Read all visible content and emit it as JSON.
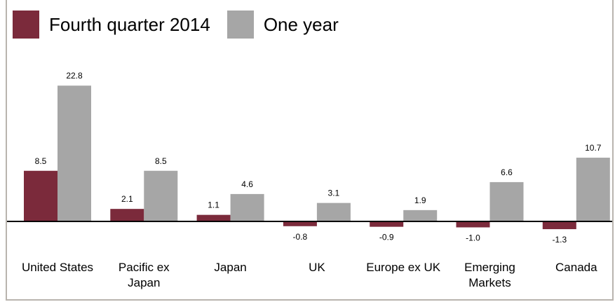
{
  "colors": {
    "fourth_quarter": "#7b2a3b",
    "one_year": "#a6a6a6"
  },
  "chart_data": {
    "type": "bar",
    "title": "",
    "xlabel": "",
    "ylabel": "",
    "ylim": [
      -1.3,
      22.8
    ],
    "grid": false,
    "legend_position": "top-left",
    "categories": [
      [
        "United States"
      ],
      [
        "Pacific ex",
        "Japan"
      ],
      [
        "Japan"
      ],
      [
        "UK"
      ],
      [
        "Europe ex UK"
      ],
      [
        "Emerging",
        "Markets"
      ],
      [
        "Canada"
      ]
    ],
    "series": [
      {
        "name": "Fourth quarter 2014",
        "values": [
          8.5,
          2.1,
          1.1,
          -0.8,
          -0.9,
          -1.0,
          -1.3
        ]
      },
      {
        "name": "One year",
        "values": [
          22.8,
          8.5,
          4.6,
          3.1,
          1.9,
          6.6,
          10.7
        ]
      }
    ]
  }
}
